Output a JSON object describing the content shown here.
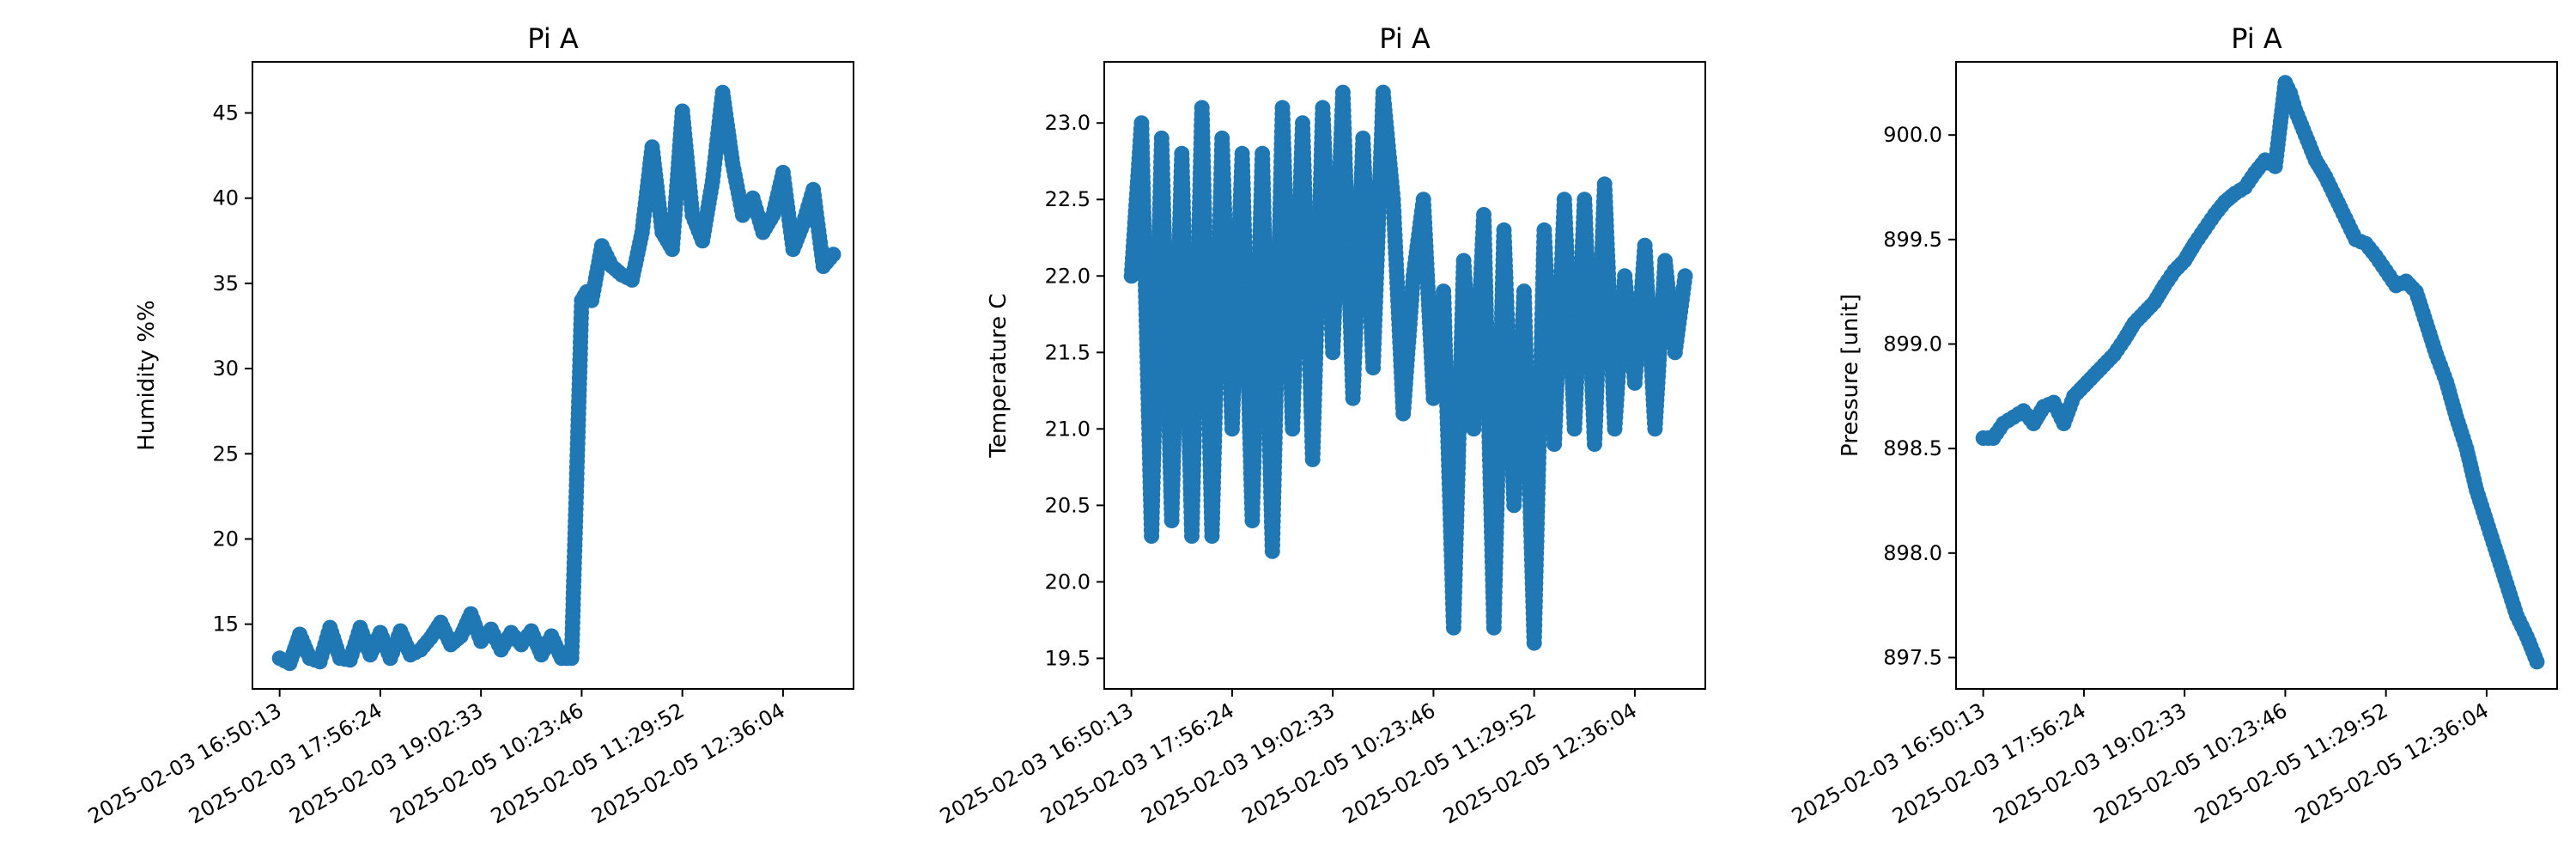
{
  "chart_data": [
    {
      "type": "line",
      "title": "Pi A",
      "xlabel": "",
      "ylabel": "Humidity %%",
      "x_ticks": [
        "2025-02-03 16:50:13",
        "2025-02-03 17:56:24",
        "2025-02-03 19:02:33",
        "2025-02-05 10:23:46",
        "2025-02-05 11:29:52",
        "2025-02-05 12:36:04"
      ],
      "y_ticks": [
        15,
        20,
        25,
        30,
        35,
        40,
        45
      ],
      "ylim": [
        11.2,
        48.0
      ],
      "xlim": [
        -0.27,
        5.7
      ],
      "color": "#1f77b4",
      "marker": "o",
      "series": [
        {
          "x": [
            0.0,
            0.1,
            0.2,
            0.3,
            0.4,
            0.5,
            0.6,
            0.7,
            0.8,
            0.9,
            1.0,
            1.1,
            1.2,
            1.3,
            1.4,
            1.5,
            1.6,
            1.7,
            1.8,
            1.9,
            2.0,
            2.1,
            2.2,
            2.3,
            2.4,
            2.5,
            2.6,
            2.7,
            2.8,
            2.9,
            3.0,
            3.05,
            3.1,
            3.2,
            3.3,
            3.4,
            3.5,
            3.6,
            3.7,
            3.8,
            3.9,
            4.0,
            4.1,
            4.2,
            4.3,
            4.4,
            4.5,
            4.6,
            4.7,
            4.8,
            4.9,
            5.0,
            5.1,
            5.2,
            5.3,
            5.4,
            5.5
          ],
          "y": [
            13.0,
            12.7,
            14.4,
            13.0,
            12.8,
            14.8,
            13.0,
            12.9,
            14.8,
            13.2,
            14.5,
            13.0,
            14.6,
            13.2,
            13.5,
            14.2,
            15.1,
            13.8,
            14.3,
            15.6,
            14.0,
            14.7,
            13.5,
            14.5,
            13.8,
            14.6,
            13.2,
            14.3,
            13.0,
            13.0,
            34.0,
            34.5,
            34.0,
            37.2,
            36.0,
            35.5,
            35.2,
            38.0,
            43.0,
            38.0,
            37.0,
            45.1,
            39.0,
            37.5,
            41.0,
            46.2,
            42.0,
            39.0,
            40.0,
            38.0,
            39.0,
            41.5,
            37.0,
            38.5,
            40.5,
            36.0,
            36.7
          ]
        }
      ]
    },
    {
      "type": "line",
      "title": "Pi A",
      "xlabel": "",
      "ylabel": "Temperature C",
      "x_ticks": [
        "2025-02-03 16:50:13",
        "2025-02-03 17:56:24",
        "2025-02-03 19:02:33",
        "2025-02-05 10:23:46",
        "2025-02-05 11:29:52",
        "2025-02-05 12:36:04"
      ],
      "y_ticks": [
        "19.5",
        "20.0",
        "20.5",
        "21.0",
        "21.5",
        "22.0",
        "22.5",
        "23.0"
      ],
      "ylim": [
        19.3,
        23.4
      ],
      "xlim": [
        -0.27,
        5.7
      ],
      "color": "#1f77b4",
      "marker": "o",
      "series": [
        {
          "x": [
            0.0,
            0.1,
            0.2,
            0.3,
            0.4,
            0.5,
            0.6,
            0.7,
            0.8,
            0.9,
            1.0,
            1.1,
            1.2,
            1.3,
            1.4,
            1.5,
            1.6,
            1.7,
            1.8,
            1.9,
            2.0,
            2.1,
            2.2,
            2.3,
            2.4,
            2.5,
            2.6,
            2.7,
            2.8,
            2.9,
            3.0,
            3.1,
            3.2,
            3.3,
            3.4,
            3.5,
            3.6,
            3.7,
            3.8,
            3.9,
            4.0,
            4.1,
            4.2,
            4.3,
            4.4,
            4.5,
            4.6,
            4.7,
            4.8,
            4.9,
            5.0,
            5.1,
            5.2,
            5.3,
            5.4,
            5.5
          ],
          "y": [
            22.0,
            23.0,
            20.3,
            22.9,
            20.4,
            22.8,
            20.3,
            23.1,
            20.3,
            22.9,
            21.0,
            22.8,
            20.4,
            22.8,
            20.2,
            23.1,
            21.0,
            23.0,
            20.8,
            23.1,
            21.5,
            23.2,
            21.2,
            22.9,
            21.4,
            23.2,
            22.5,
            21.1,
            22.0,
            22.5,
            21.2,
            21.9,
            19.7,
            22.1,
            21.0,
            22.4,
            19.7,
            22.3,
            20.5,
            21.9,
            19.6,
            22.3,
            20.9,
            22.5,
            21.0,
            22.5,
            20.9,
            22.6,
            21.0,
            22.0,
            21.3,
            22.2,
            21.0,
            22.1,
            21.5,
            22.0
          ]
        }
      ]
    },
    {
      "type": "line",
      "title": "Pi A",
      "xlabel": "",
      "ylabel": "Pressure [unit]",
      "x_ticks": [
        "2025-02-03 16:50:13",
        "2025-02-03 17:56:24",
        "2025-02-03 19:02:33",
        "2025-02-05 10:23:46",
        "2025-02-05 11:29:52",
        "2025-02-05 12:36:04"
      ],
      "y_ticks": [
        "897.5",
        "898.0",
        "898.5",
        "899.0",
        "899.5",
        "900.0"
      ],
      "ylim": [
        897.35,
        900.35
      ],
      "xlim": [
        -0.27,
        5.7
      ],
      "color": "#1f77b4",
      "marker": "o",
      "series": [
        {
          "x": [
            0.0,
            0.1,
            0.2,
            0.3,
            0.4,
            0.5,
            0.6,
            0.7,
            0.8,
            0.9,
            1.0,
            1.1,
            1.2,
            1.3,
            1.4,
            1.5,
            1.6,
            1.7,
            1.8,
            1.9,
            2.0,
            2.1,
            2.2,
            2.3,
            2.4,
            2.5,
            2.6,
            2.7,
            2.8,
            2.9,
            3.0,
            3.05,
            3.1,
            3.2,
            3.3,
            3.4,
            3.5,
            3.6,
            3.7,
            3.8,
            3.9,
            4.0,
            4.1,
            4.2,
            4.3,
            4.4,
            4.5,
            4.6,
            4.7,
            4.8,
            4.9,
            5.0,
            5.1,
            5.2,
            5.3,
            5.4,
            5.5
          ],
          "y": [
            898.55,
            898.55,
            898.62,
            898.65,
            898.68,
            898.62,
            898.7,
            898.72,
            898.62,
            898.75,
            898.8,
            898.85,
            898.9,
            898.95,
            899.02,
            899.1,
            899.15,
            899.2,
            899.28,
            899.35,
            899.4,
            899.48,
            899.55,
            899.62,
            899.68,
            899.72,
            899.75,
            899.82,
            899.88,
            899.85,
            900.25,
            900.2,
            900.12,
            900.0,
            899.88,
            899.8,
            899.7,
            899.6,
            899.5,
            899.48,
            899.42,
            899.35,
            899.28,
            899.3,
            899.25,
            899.1,
            898.95,
            898.82,
            898.65,
            898.5,
            898.3,
            898.15,
            898.0,
            897.85,
            897.7,
            897.6,
            897.48
          ]
        }
      ]
    }
  ]
}
